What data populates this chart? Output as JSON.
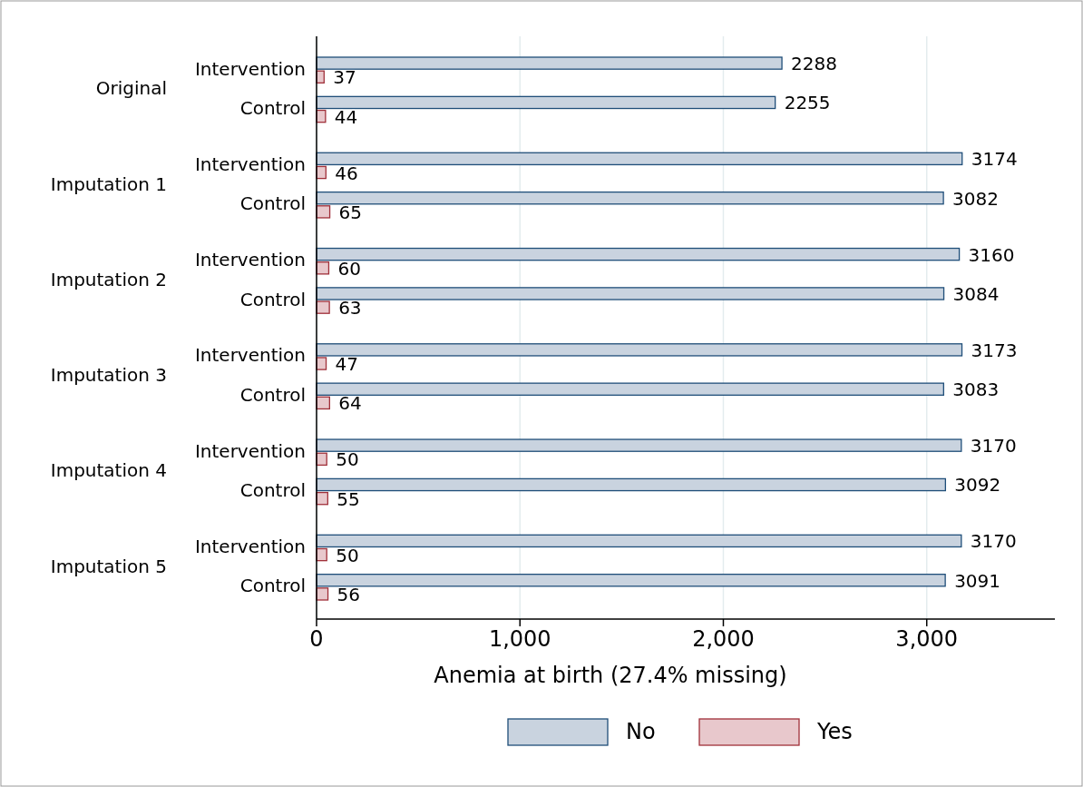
{
  "chart_data": {
    "type": "bar",
    "orientation": "horizontal",
    "categories": [
      "Intervention",
      "Control",
      "Intervention",
      "Control",
      "Intervention",
      "Control",
      "Intervention",
      "Control",
      "Intervention",
      "Control",
      "Intervention",
      "Control"
    ],
    "annotations": [
      "Original",
      "Imputation 1",
      "Imputation 2",
      "Imputation 3",
      "Imputation 4",
      "Imputation 5"
    ],
    "series": [
      {
        "name": "No",
        "color": "#c9d3df",
        "values": [
          2288,
          2255,
          3174,
          3082,
          3160,
          3084,
          3173,
          3083,
          3170,
          3092,
          3170,
          3091
        ]
      },
      {
        "name": "Yes",
        "color": "#e8c8cc",
        "values": [
          37,
          44,
          46,
          65,
          60,
          63,
          47,
          64,
          50,
          55,
          50,
          56
        ]
      }
    ],
    "xlabel": "Anemia at birth (27.4% missing)",
    "xlim": [
      0,
      3630
    ],
    "xticks": [
      0,
      {
        "value": 1000,
        "label": "1,000"
      },
      {
        "value": 2000,
        "label": "2,000"
      },
      {
        "value": 3000,
        "label": "3,000"
      }
    ],
    "grid": "x",
    "legend": "bottom",
    "data_labels": true
  }
}
